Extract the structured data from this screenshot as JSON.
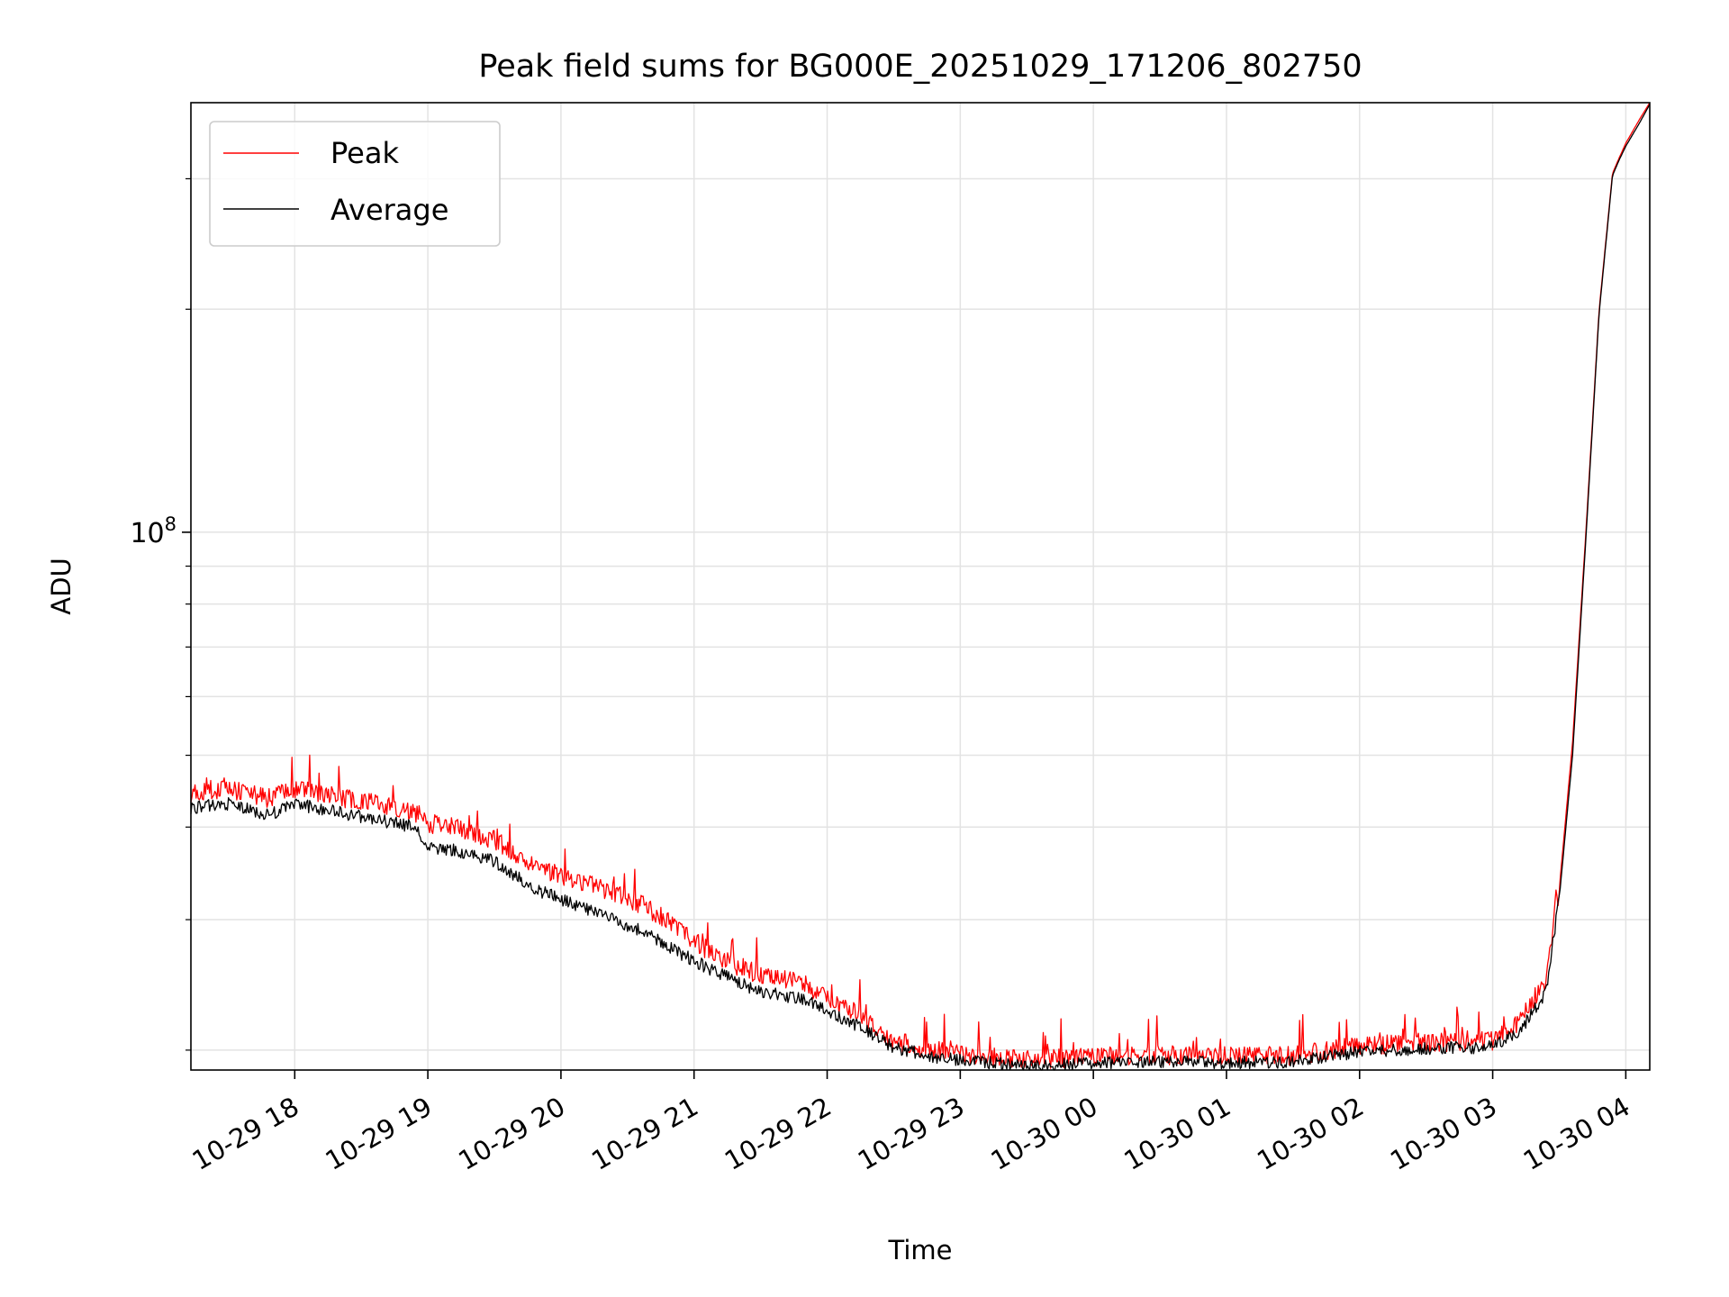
{
  "chart_data": {
    "type": "line",
    "title": "Peak field sums for BG000E_20251029_171206_802750",
    "xlabel": "Time",
    "ylabel": "ADU",
    "yscale": "log",
    "ylim": [
      18800000,
      380000000
    ],
    "xlim_hours": [
      17.22,
      28.18
    ],
    "grid": true,
    "legend_position": "upper-left",
    "x_ticks": [
      {
        "hour": 18,
        "label": "10-29 18"
      },
      {
        "hour": 19,
        "label": "10-29 19"
      },
      {
        "hour": 20,
        "label": "10-29 20"
      },
      {
        "hour": 21,
        "label": "10-29 21"
      },
      {
        "hour": 22,
        "label": "10-29 22"
      },
      {
        "hour": 23,
        "label": "10-29 23"
      },
      {
        "hour": 24,
        "label": "10-30 00"
      },
      {
        "hour": 25,
        "label": "10-30 01"
      },
      {
        "hour": 26,
        "label": "10-30 02"
      },
      {
        "hour": 27,
        "label": "10-30 03"
      },
      {
        "hour": 28,
        "label": "10-30 04"
      }
    ],
    "y_major_ticks": [
      {
        "value": 100000000,
        "base": "10",
        "exp": "8"
      }
    ],
    "y_minor_ticks": [
      20000000,
      30000000,
      40000000,
      50000000,
      60000000,
      70000000,
      80000000,
      90000000,
      200000000,
      300000000
    ],
    "series": [
      {
        "name": "Peak",
        "color": "#ff0000",
        "hours": [
          17.22,
          17.5,
          17.8,
          18.0,
          18.3,
          18.6,
          18.9,
          19.0,
          19.2,
          19.5,
          19.8,
          20.0,
          20.3,
          20.6,
          20.9,
          21.2,
          21.5,
          21.8,
          22.0,
          22.2,
          22.5,
          22.8,
          23.0,
          23.5,
          24.0,
          24.5,
          25.0,
          25.5,
          26.0,
          26.5,
          27.0,
          27.2,
          27.4,
          27.5,
          27.6,
          27.7,
          27.8,
          27.9,
          27.95,
          28.0,
          28.1,
          28.18
        ],
        "values": [
          44500000,
          45000000,
          43800000,
          45000000,
          44000000,
          43000000,
          42000000,
          40500000,
          40000000,
          38500000,
          35500000,
          34500000,
          33000000,
          31500000,
          29000000,
          26500000,
          25300000,
          24800000,
          23500000,
          22500000,
          20600000,
          20000000,
          19800000,
          19400000,
          19600000,
          19700000,
          19700000,
          19650000,
          20300000,
          20500000,
          20600000,
          21800000,
          25000000,
          33000000,
          52000000,
          100000000,
          200000000,
          305000000,
          320000000,
          335000000,
          360000000,
          380000000
        ]
      },
      {
        "name": "Average",
        "color": "#000000",
        "hours": [
          17.22,
          17.5,
          17.8,
          18.0,
          18.3,
          18.6,
          18.9,
          19.0,
          19.2,
          19.5,
          19.8,
          20.0,
          20.3,
          20.6,
          20.9,
          21.2,
          21.5,
          21.8,
          22.0,
          22.2,
          22.5,
          22.8,
          23.0,
          23.5,
          24.0,
          24.5,
          25.0,
          25.5,
          26.0,
          26.5,
          27.0,
          27.2,
          27.4,
          27.5,
          27.6,
          27.7,
          27.8,
          27.9,
          27.95,
          28.0,
          28.1,
          28.18
        ],
        "values": [
          42500000,
          43000000,
          41500000,
          43000000,
          42000000,
          41000000,
          40000000,
          37500000,
          37200000,
          36000000,
          33000000,
          32000000,
          30500000,
          29000000,
          27000000,
          25300000,
          24000000,
          23500000,
          22600000,
          21700000,
          20200000,
          19600000,
          19400000,
          19050000,
          19200000,
          19300000,
          19250000,
          19300000,
          19900000,
          20100000,
          20200000,
          21200000,
          24000000,
          32000000,
          50000000,
          98000000,
          198000000,
          303000000,
          318000000,
          332000000,
          356000000,
          378000000
        ]
      }
    ]
  }
}
